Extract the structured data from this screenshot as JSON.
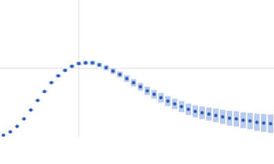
{
  "chart_data": {
    "type": "scatter",
    "x": [
      0.005,
      0.015,
      0.025,
      0.035,
      0.045,
      0.055,
      0.065,
      0.075,
      0.085,
      0.095,
      0.105,
      0.115,
      0.125,
      0.135,
      0.145,
      0.155,
      0.165,
      0.175,
      0.185,
      0.195,
      0.205,
      0.215,
      0.225,
      0.235,
      0.245,
      0.255,
      0.265,
      0.275,
      0.285,
      0.295,
      0.305,
      0.315,
      0.325,
      0.335,
      0.345,
      0.355,
      0.365,
      0.375,
      0.385,
      0.395
    ],
    "values": [
      0.02,
      0.07,
      0.15,
      0.26,
      0.39,
      0.53,
      0.66,
      0.79,
      0.89,
      0.97,
      1.03,
      1.07,
      1.08,
      1.08,
      1.05,
      1.01,
      0.96,
      0.91,
      0.85,
      0.79,
      0.73,
      0.67,
      0.62,
      0.57,
      0.52,
      0.48,
      0.44,
      0.4,
      0.37,
      0.35,
      0.33,
      0.31,
      0.29,
      0.27,
      0.26,
      0.24,
      0.23,
      0.21,
      0.2,
      0.19
    ],
    "errors": [
      0.005,
      0.006,
      0.007,
      0.008,
      0.01,
      0.012,
      0.014,
      0.016,
      0.018,
      0.02,
      0.022,
      0.025,
      0.028,
      0.031,
      0.034,
      0.037,
      0.04,
      0.044,
      0.048,
      0.052,
      0.056,
      0.06,
      0.064,
      0.068,
      0.072,
      0.076,
      0.08,
      0.084,
      0.088,
      0.092,
      0.096,
      0.1,
      0.104,
      0.108,
      0.112,
      0.116,
      0.12,
      0.125,
      0.13,
      0.135
    ],
    "color": "#2f5fb3",
    "error_color": "#b9cbee",
    "xlim": [
      0,
      0.4
    ],
    "ylim": [
      0,
      2
    ],
    "xticks": [
      0.115
    ],
    "yticks": [
      1
    ],
    "grid": true
  }
}
